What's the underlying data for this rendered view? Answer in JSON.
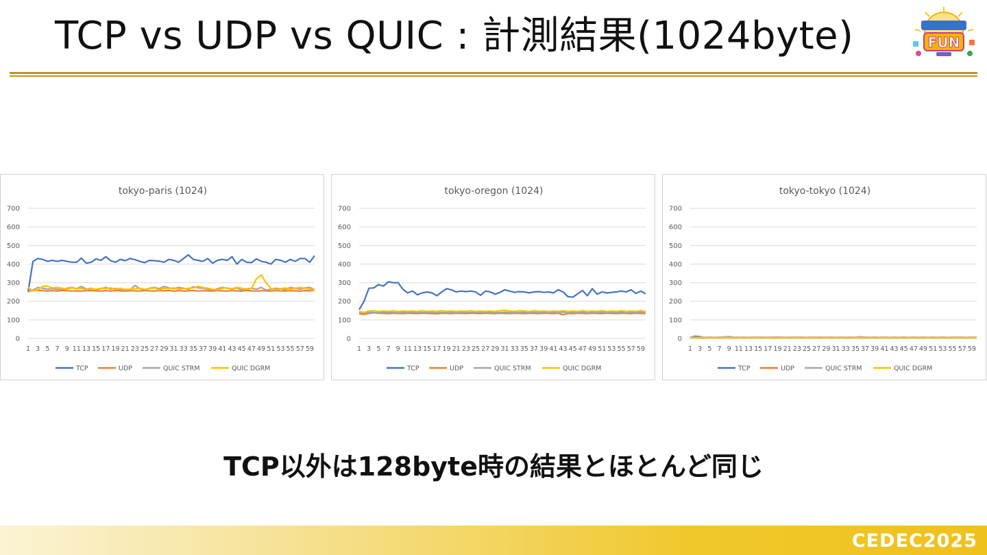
{
  "slide": {
    "title": "TCP vs UDP vs QUIC : 計測結果(1024byte)",
    "conclusion": "TCP以外は128byte時の結果とほとんど同じ",
    "footer_brand": "CEDEC2025",
    "logo_text": "FUN"
  },
  "colors": {
    "TCP": "#4472c4",
    "UDP": "#ed7d31",
    "QUIC STRM": "#a5a5a5",
    "QUIC DGRM": "#ffc000",
    "accent_gold": "#b9962a",
    "footer_gold": "#f0c82c"
  },
  "chart_data": [
    {
      "type": "line",
      "title": "tokyo-paris (1024)",
      "xlabel": "",
      "ylabel": "",
      "ylim": [
        0,
        700
      ],
      "yticks": [
        0,
        100,
        200,
        300,
        400,
        500,
        600,
        700
      ],
      "x": [
        1,
        2,
        3,
        4,
        5,
        6,
        7,
        8,
        9,
        10,
        11,
        12,
        13,
        14,
        15,
        16,
        17,
        18,
        19,
        20,
        21,
        22,
        23,
        24,
        25,
        26,
        27,
        28,
        29,
        30,
        31,
        32,
        33,
        34,
        35,
        36,
        37,
        38,
        39,
        40,
        41,
        42,
        43,
        44,
        45,
        46,
        47,
        48,
        49,
        50,
        51,
        52,
        53,
        54,
        55,
        56,
        57,
        58,
        59,
        60
      ],
      "x_tick_labels": [
        "1",
        "3",
        "5",
        "7",
        "9",
        "11",
        "13",
        "15",
        "17",
        "19",
        "21",
        "23",
        "25",
        "27",
        "29",
        "31",
        "33",
        "35",
        "37",
        "39",
        "41",
        "43",
        "45",
        "47",
        "49",
        "51",
        "53",
        "55",
        "57",
        "59"
      ],
      "grid": true,
      "legend_position": "bottom",
      "series": [
        {
          "name": "TCP",
          "values": [
            250,
            415,
            430,
            425,
            415,
            420,
            415,
            420,
            415,
            410,
            410,
            432,
            405,
            410,
            428,
            420,
            440,
            418,
            410,
            425,
            418,
            430,
            424,
            415,
            408,
            420,
            418,
            416,
            410,
            425,
            420,
            410,
            430,
            450,
            425,
            420,
            415,
            430,
            405,
            420,
            425,
            420,
            440,
            400,
            425,
            410,
            408,
            428,
            415,
            410,
            400,
            425,
            420,
            410,
            425,
            415,
            430,
            430,
            410,
            445
          ]
        },
        {
          "name": "UDP",
          "values": [
            255,
            260,
            258,
            258,
            255,
            257,
            255,
            258,
            257,
            255,
            256,
            255,
            257,
            258,
            256,
            255,
            257,
            255,
            258,
            256,
            255,
            257,
            256,
            255,
            258,
            256,
            255,
            257,
            256,
            258,
            255,
            257,
            255,
            256,
            258,
            255,
            257,
            256,
            255,
            258,
            256,
            255,
            257,
            256,
            255,
            258,
            256,
            255,
            257,
            256,
            255,
            258,
            256,
            255,
            257,
            256,
            255,
            258,
            256,
            260
          ]
        },
        {
          "name": "QUIC STRM",
          "values": [
            250,
            260,
            275,
            270,
            265,
            268,
            265,
            262,
            270,
            275,
            268,
            280,
            265,
            270,
            262,
            268,
            275,
            265,
            270,
            260,
            265,
            262,
            285,
            268,
            262,
            270,
            275,
            268,
            280,
            272,
            268,
            275,
            270,
            265,
            278,
            272,
            270,
            265,
            260,
            268,
            275,
            270,
            265,
            272,
            260,
            268,
            270,
            265,
            275,
            260,
            265,
            270,
            268,
            262,
            275,
            270,
            265,
            272,
            275,
            262
          ]
        },
        {
          "name": "QUIC DGRM",
          "values": [
            275,
            255,
            262,
            280,
            282,
            272,
            275,
            270,
            265,
            272,
            268,
            270,
            262,
            268,
            265,
            270,
            268,
            272,
            265,
            270,
            262,
            265,
            268,
            270,
            265,
            268,
            272,
            262,
            270,
            268,
            272,
            265,
            268,
            270,
            272,
            280,
            275,
            270,
            265,
            262,
            270,
            272,
            268,
            275,
            270,
            265,
            268,
            320,
            342,
            300,
            270,
            262,
            268,
            272,
            265,
            270,
            275,
            270,
            265,
            262
          ]
        }
      ]
    },
    {
      "type": "line",
      "title": "tokyo-oregon (1024)",
      "xlabel": "",
      "ylabel": "",
      "ylim": [
        0,
        700
      ],
      "yticks": [
        0,
        100,
        200,
        300,
        400,
        500,
        600,
        700
      ],
      "x": [
        1,
        2,
        3,
        4,
        5,
        6,
        7,
        8,
        9,
        10,
        11,
        12,
        13,
        14,
        15,
        16,
        17,
        18,
        19,
        20,
        21,
        22,
        23,
        24,
        25,
        26,
        27,
        28,
        29,
        30,
        31,
        32,
        33,
        34,
        35,
        36,
        37,
        38,
        39,
        40,
        41,
        42,
        43,
        44,
        45,
        46,
        47,
        48,
        49,
        50,
        51,
        52,
        53,
        54,
        55,
        56,
        57,
        58,
        59,
        60
      ],
      "x_tick_labels": [
        "1",
        "3",
        "5",
        "7",
        "9",
        "11",
        "13",
        "15",
        "17",
        "19",
        "21",
        "23",
        "25",
        "27",
        "29",
        "31",
        "33",
        "35",
        "37",
        "39",
        "41",
        "43",
        "45",
        "47",
        "49",
        "51",
        "53",
        "55",
        "57",
        "59"
      ],
      "grid": true,
      "legend_position": "bottom",
      "series": [
        {
          "name": "TCP",
          "values": [
            155,
            200,
            270,
            272,
            290,
            282,
            305,
            300,
            300,
            265,
            245,
            255,
            235,
            245,
            250,
            245,
            230,
            250,
            268,
            262,
            250,
            255,
            252,
            255,
            250,
            232,
            255,
            250,
            238,
            248,
            262,
            255,
            248,
            252,
            250,
            245,
            250,
            252,
            248,
            250,
            245,
            262,
            250,
            225,
            222,
            240,
            258,
            230,
            268,
            238,
            250,
            245,
            248,
            250,
            255,
            250,
            262,
            242,
            255,
            240
          ]
        },
        {
          "name": "UDP",
          "values": [
            132,
            130,
            135,
            138,
            136,
            135,
            134,
            136,
            135,
            134,
            136,
            135,
            134,
            136,
            135,
            134,
            133,
            136,
            135,
            134,
            136,
            135,
            134,
            136,
            135,
            134,
            136,
            135,
            134,
            136,
            135,
            134,
            136,
            135,
            134,
            136,
            135,
            134,
            136,
            135,
            134,
            136,
            128,
            135,
            134,
            136,
            135,
            134,
            136,
            135,
            134,
            136,
            135,
            134,
            136,
            135,
            134,
            136,
            135,
            134
          ]
        },
        {
          "name": "QUIC STRM",
          "values": [
            140,
            138,
            142,
            140,
            141,
            140,
            142,
            140,
            141,
            140,
            142,
            140,
            141,
            140,
            142,
            140,
            141,
            140,
            142,
            140,
            141,
            140,
            142,
            140,
            141,
            140,
            142,
            140,
            141,
            140,
            142,
            140,
            141,
            140,
            142,
            140,
            141,
            140,
            142,
            140,
            141,
            140,
            142,
            140,
            141,
            140,
            142,
            140,
            141,
            140,
            142,
            140,
            141,
            140,
            142,
            140,
            141,
            140,
            142,
            140
          ]
        },
        {
          "name": "QUIC DGRM",
          "values": [
            145,
            140,
            148,
            150,
            145,
            148,
            146,
            150,
            145,
            148,
            146,
            148,
            145,
            150,
            146,
            148,
            145,
            150,
            146,
            148,
            145,
            148,
            146,
            150,
            145,
            148,
            146,
            148,
            145,
            150,
            152,
            148,
            146,
            150,
            148,
            145,
            150,
            146,
            148,
            145,
            148,
            146,
            150,
            145,
            148,
            146,
            150,
            145,
            148,
            146,
            150,
            145,
            148,
            146,
            150,
            145,
            148,
            146,
            150,
            145
          ]
        }
      ]
    },
    {
      "type": "line",
      "title": "tokyo-tokyo (1024)",
      "xlabel": "",
      "ylabel": "",
      "ylim": [
        0,
        700
      ],
      "yticks": [
        0,
        100,
        200,
        300,
        400,
        500,
        600,
        700
      ],
      "x": [
        1,
        2,
        3,
        4,
        5,
        6,
        7,
        8,
        9,
        10,
        11,
        12,
        13,
        14,
        15,
        16,
        17,
        18,
        19,
        20,
        21,
        22,
        23,
        24,
        25,
        26,
        27,
        28,
        29,
        30,
        31,
        32,
        33,
        34,
        35,
        36,
        37,
        38,
        39,
        40,
        41,
        42,
        43,
        44,
        45,
        46,
        47,
        48,
        49,
        50,
        51,
        52,
        53,
        54,
        55,
        56,
        57,
        58,
        59,
        60
      ],
      "x_tick_labels": [
        "1",
        "3",
        "5",
        "7",
        "9",
        "11",
        "13",
        "15",
        "17",
        "19",
        "21",
        "23",
        "25",
        "27",
        "29",
        "31",
        "33",
        "35",
        "37",
        "39",
        "41",
        "43",
        "45",
        "47",
        "49",
        "51",
        "53",
        "55",
        "57",
        "59"
      ],
      "grid": true,
      "legend_position": "bottom",
      "series": [
        {
          "name": "TCP",
          "values": [
            5,
            12,
            10,
            5,
            6,
            5,
            5,
            8,
            10,
            6,
            5,
            5,
            4,
            5,
            6,
            5,
            5,
            6,
            7,
            5,
            5,
            5,
            6,
            5,
            5,
            4,
            5,
            6,
            5,
            5,
            5,
            6,
            5,
            5,
            5,
            8,
            6,
            5,
            5,
            5,
            6,
            5,
            5,
            5,
            6,
            5,
            5,
            5,
            6,
            5,
            5,
            5,
            6,
            5,
            5,
            6,
            5,
            5,
            6,
            5
          ]
        },
        {
          "name": "UDP",
          "values": [
            3,
            4,
            3,
            3,
            4,
            3,
            3,
            4,
            3,
            3,
            4,
            3,
            3,
            4,
            3,
            3,
            4,
            3,
            3,
            4,
            3,
            3,
            4,
            3,
            3,
            4,
            3,
            3,
            4,
            3,
            3,
            4,
            3,
            3,
            4,
            3,
            3,
            4,
            3,
            3,
            4,
            3,
            3,
            4,
            3,
            3,
            4,
            3,
            3,
            4,
            3,
            3,
            4,
            3,
            3,
            4,
            3,
            3,
            4,
            3
          ]
        },
        {
          "name": "QUIC STRM",
          "values": [
            6,
            8,
            7,
            6,
            7,
            6,
            7,
            8,
            9,
            7,
            6,
            7,
            6,
            7,
            6,
            7,
            6,
            7,
            6,
            7,
            6,
            7,
            6,
            7,
            6,
            7,
            6,
            7,
            6,
            7,
            6,
            7,
            6,
            7,
            6,
            9,
            7,
            6,
            7,
            6,
            7,
            6,
            7,
            6,
            7,
            6,
            7,
            6,
            7,
            6,
            7,
            6,
            7,
            6,
            7,
            6,
            7,
            6,
            7,
            6
          ]
        },
        {
          "name": "QUIC DGRM",
          "values": [
            4,
            5,
            4,
            5,
            4,
            5,
            4,
            5,
            4,
            5,
            4,
            5,
            4,
            5,
            4,
            5,
            4,
            5,
            4,
            5,
            4,
            5,
            4,
            5,
            4,
            5,
            4,
            5,
            4,
            5,
            4,
            5,
            4,
            5,
            4,
            5,
            4,
            5,
            4,
            5,
            4,
            5,
            4,
            5,
            4,
            5,
            4,
            5,
            4,
            5,
            4,
            5,
            4,
            5,
            4,
            5,
            4,
            5,
            4,
            5
          ]
        }
      ]
    }
  ]
}
